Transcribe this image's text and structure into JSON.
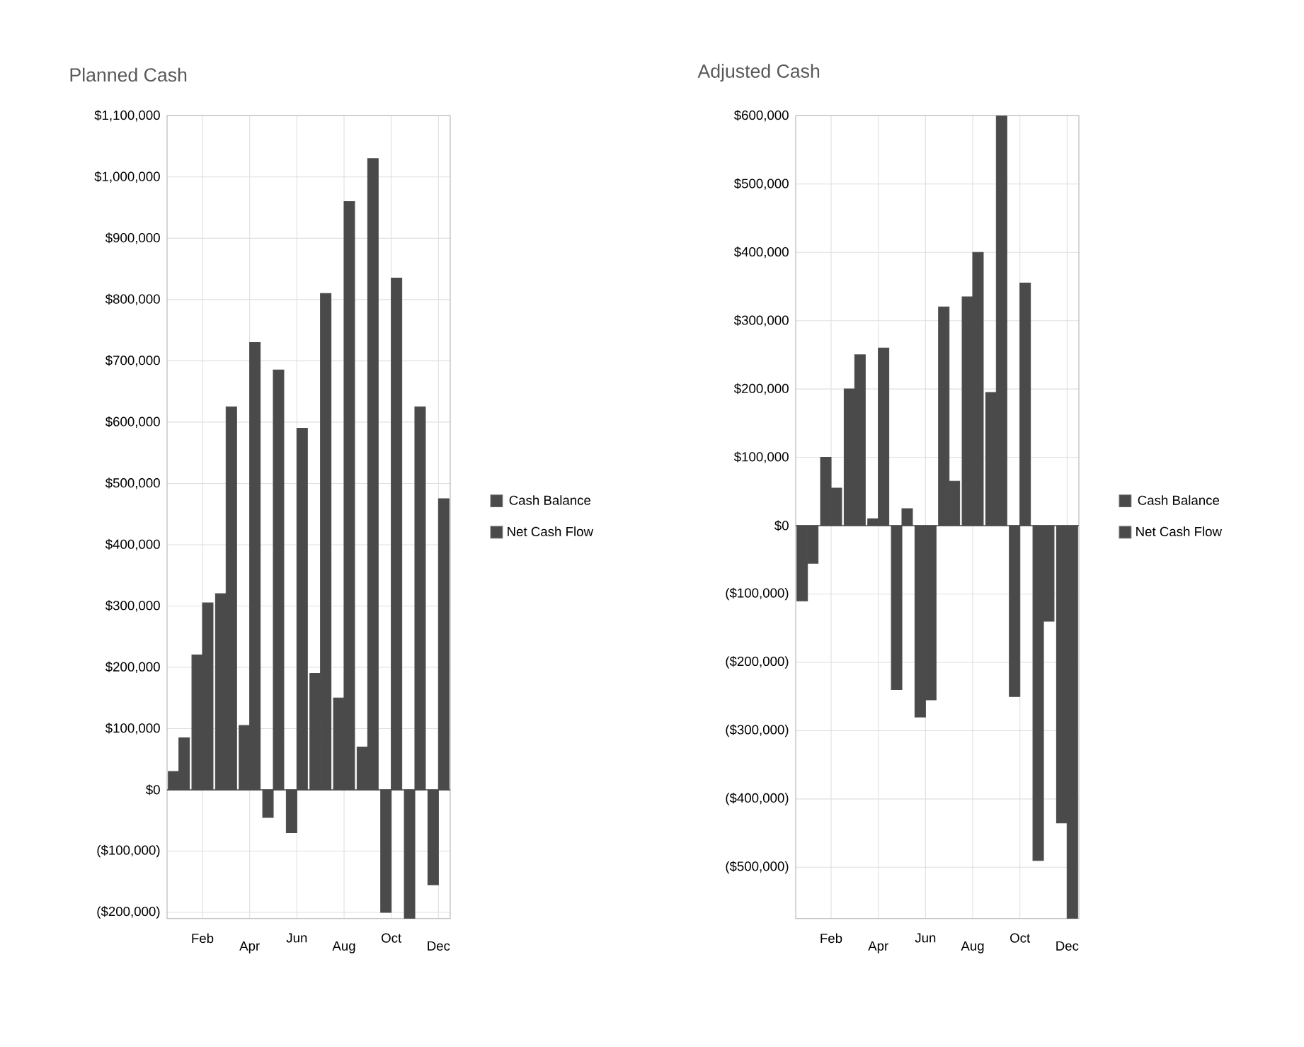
{
  "chart_data": [
    {
      "type": "bar",
      "title": "Planned Cash",
      "categories": [
        null,
        "Feb",
        null,
        "Apr",
        null,
        "Jun",
        null,
        "Aug",
        null,
        "Oct",
        null,
        "Dec"
      ],
      "series": [
        {
          "name": "Net Cash Flow",
          "color": "#4a4a4a",
          "values": [
            30000,
            220000,
            320000,
            105000,
            -45000,
            -70000,
            190000,
            150000,
            70000,
            -200000,
            -210000,
            -155000
          ]
        },
        {
          "name": "Cash Balance",
          "color": "#4a4a4a",
          "values": [
            85000,
            305000,
            625000,
            730000,
            685000,
            590000,
            810000,
            960000,
            1030000,
            835000,
            625000,
            475000
          ]
        }
      ],
      "ylim": [
        -210000,
        1100000
      ],
      "yticks": [
        {
          "value": -200000,
          "label": "($200,000)"
        },
        {
          "value": -100000,
          "label": "($100,000)"
        },
        {
          "value": 0,
          "label": "$0"
        },
        {
          "value": 100000,
          "label": "$100,000"
        },
        {
          "value": 200000,
          "label": "$200,000"
        },
        {
          "value": 300000,
          "label": "$300,000"
        },
        {
          "value": 400000,
          "label": "$400,000"
        },
        {
          "value": 500000,
          "label": "$500,000"
        },
        {
          "value": 600000,
          "label": "$600,000"
        },
        {
          "value": 700000,
          "label": "$700,000"
        },
        {
          "value": 800000,
          "label": "$800,000"
        },
        {
          "value": 900000,
          "label": "$900,000"
        },
        {
          "value": 1000000,
          "label": "$1,000,000"
        },
        {
          "value": 1100000,
          "label": "$1,100,000"
        }
      ],
      "grid": true,
      "legend": "right"
    },
    {
      "type": "bar",
      "title": "Adjusted Cash",
      "categories": [
        null,
        "Feb",
        null,
        "Apr",
        null,
        "Jun",
        null,
        "Aug",
        null,
        "Oct",
        null,
        "Dec"
      ],
      "series": [
        {
          "name": "Net Cash Flow",
          "color": "#4a4a4a",
          "values": [
            -110000,
            100000,
            200000,
            10000,
            -240000,
            -280000,
            320000,
            335000,
            195000,
            -250000,
            -490000,
            -435000
          ]
        },
        {
          "name": "Cash Balance",
          "color": "#4a4a4a",
          "values": [
            -55000,
            55000,
            250000,
            260000,
            25000,
            -255000,
            65000,
            400000,
            600000,
            355000,
            -140000,
            -575000
          ]
        }
      ],
      "ylim": [
        -575000,
        600000
      ],
      "yticks": [
        {
          "value": -500000,
          "label": "($500,000)"
        },
        {
          "value": -400000,
          "label": "($400,000)"
        },
        {
          "value": -300000,
          "label": "($300,000)"
        },
        {
          "value": -200000,
          "label": "($200,000)"
        },
        {
          "value": -100000,
          "label": "($100,000)"
        },
        {
          "value": 0,
          "label": "$0"
        },
        {
          "value": 100000,
          "label": "$100,000"
        },
        {
          "value": 200000,
          "label": "$200,000"
        },
        {
          "value": 300000,
          "label": "$300,000"
        },
        {
          "value": 400000,
          "label": "$400,000"
        },
        {
          "value": 500000,
          "label": "$500,000"
        },
        {
          "value": 600000,
          "label": "$600,000"
        }
      ],
      "grid": true,
      "legend": "right"
    }
  ]
}
